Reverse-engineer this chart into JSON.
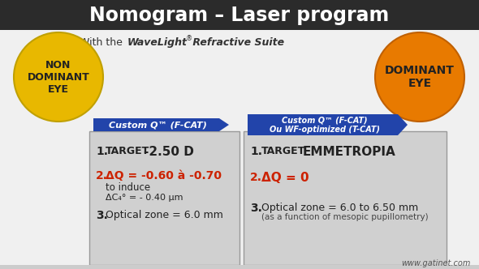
{
  "title": "Nomogram – Laser program",
  "title_bg": "#2b2b2b",
  "title_color": "#ffffff",
  "subtitle_plain": "With the ",
  "subtitle_italic": "WaveLight",
  "subtitle_sup": "®",
  "subtitle_rest": " Refractive Suite",
  "subtitle_color": "#333333",
  "left_circle_color": "#e8b800",
  "right_circle_color": "#e87a00",
  "left_circle_text": "NON\nDOMINANT\nEYE",
  "right_circle_text": "DOMINANT\nEYE",
  "left_arrow_color": "#2244aa",
  "right_arrow_color": "#2244aa",
  "left_arrow_text": "Custom Q™ (F-CAT)",
  "right_arrow_text": "Custom Q™ (F-CAT)\nOu WF-optimized (T-CAT)",
  "left_box_bg": "#d0d0d0",
  "right_box_bg": "#d0d0d0",
  "left_box_lines": [
    {
      "num": "1.",
      "text": "  TARGET ",
      "bold_text": "-2.50 D",
      "color": "#222222",
      "bold_color": "#222222",
      "size": 11
    },
    {
      "num": "",
      "text": "",
      "bold_text": "",
      "color": "#222222",
      "bold_color": "#222222",
      "size": 9
    },
    {
      "num": "2.",
      "delta_text": "ΔQ = -0.60 à -0.70",
      "plain_text": "",
      "color": "#cc2200",
      "size": 11
    },
    {
      "num": "",
      "text": "   to induce",
      "bold_text": "",
      "color": "#222222",
      "size": 9
    },
    {
      "num": "",
      "text": "   ΔC₄° = - 0.40 μm",
      "bold_text": "",
      "color": "#222222",
      "size": 8
    },
    {
      "num": "",
      "text": "",
      "bold_text": "",
      "color": "#222222",
      "size": 9
    },
    {
      "num": "3.",
      "text": " Optical zone = 6.0 mm",
      "bold_text": "",
      "color": "#222222",
      "size": 10
    }
  ],
  "right_box_lines": [
    {
      "num": "1.",
      "text": "  TARGET ",
      "bold_text": "EMMETROPIA",
      "color": "#222222",
      "bold_color": "#222222",
      "size": 11
    },
    {
      "num": "",
      "text": "",
      "bold_text": "",
      "color": "#222222",
      "size": 9
    },
    {
      "num": "2.",
      "delta_text": "ΔQ = 0",
      "plain_text": "",
      "color": "#cc2200",
      "size": 11
    },
    {
      "num": "",
      "text": "",
      "bold_text": "",
      "color": "#222222",
      "size": 9
    },
    {
      "num": "3.",
      "text": " Optical zone = 6.0 to 6.50 mm",
      "bold_text": "",
      "color": "#222222",
      "size": 10
    },
    {
      "num": "",
      "text": "(as a function of mesopic pupillometry)",
      "bold_text": "",
      "color": "#444444",
      "size": 8
    }
  ],
  "watermark": "www.gatinet.com",
  "bg_color": "#f0f0f0"
}
